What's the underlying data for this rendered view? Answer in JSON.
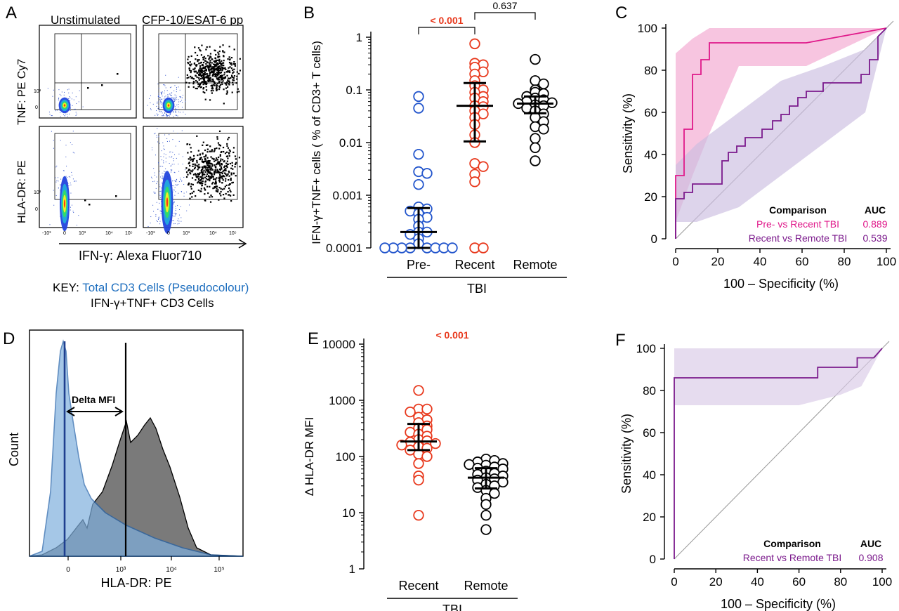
{
  "panels": {
    "A": {
      "letter": "A",
      "col_titles": [
        "Unstimulated",
        "CFP-10/ESAT-6 pp"
      ],
      "row_labels": [
        "TNF: PE Cy7",
        "HLA-DR: PE"
      ],
      "x_label": "IFN-γ: Alexa Fluor710",
      "x_tick_labels": [
        "-10³",
        "0",
        "10³",
        "10⁴",
        "10⁵"
      ],
      "y_tick_labels": [
        "10³",
        "0"
      ],
      "key": {
        "prefix": "KEY:",
        "line1": "Total CD3 Cells (Pseudocolour)",
        "line2": "IFN-γ+TNF+ CD3 Cells",
        "line1_color": "#1f6fbf"
      }
    },
    "B": {
      "letter": "B"
    },
    "C": {
      "letter": "C"
    },
    "D": {
      "letter": "D",
      "ylabel": "Count",
      "xlabel": "HLA-DR: PE",
      "annotation": "Delta MFI",
      "x_tick_labels": [
        "0",
        "10³",
        "10⁴",
        "10⁵"
      ],
      "colors": {
        "unstim_fill": "#7fb0de",
        "unstim_line": "#1f5fa8",
        "stim_fill": "#7a7a7a"
      }
    },
    "E": {
      "letter": "E"
    },
    "F": {
      "letter": "F"
    }
  },
  "chart_data": [
    {
      "panel": "B",
      "type": "scatter",
      "ylabel": "IFN-γ+TNF+ cells ( % of CD3+ T cells)",
      "y_scale": "log",
      "ylim": [
        0.0001,
        1
      ],
      "y_tick_labels": [
        "0.0001",
        "0.001",
        "0.01",
        "0.1",
        "1"
      ],
      "categories": [
        "Pre-",
        "Recent",
        "Remote"
      ],
      "group_label": "TBI",
      "colors": [
        "#2255cc",
        "#e8381c",
        "#000000"
      ],
      "series": [
        {
          "name": "Pre-",
          "values": [
            0.075,
            0.045,
            0.006,
            0.0028,
            0.0026,
            0.0016,
            0.0006,
            0.00055,
            0.0005,
            0.00045,
            0.00038,
            0.00035,
            0.00026,
            0.0002,
            0.0002,
            0.00018,
            0.00015,
            0.00012,
            0.0001,
            0.0001,
            0.0001,
            0.0001,
            0.0001,
            0.0001,
            0.0001,
            0.0001
          ],
          "median": 0.0002,
          "iqr": [
            0.0001,
            0.00057
          ]
        },
        {
          "name": "Recent",
          "values": [
            0.75,
            0.32,
            0.3,
            0.27,
            0.22,
            0.2,
            0.15,
            0.12,
            0.1,
            0.09,
            0.075,
            0.07,
            0.06,
            0.05,
            0.048,
            0.04,
            0.035,
            0.03,
            0.022,
            0.014,
            0.01,
            0.004,
            0.0035,
            0.0025,
            0.0018,
            0.0001,
            0.0001
          ],
          "median": 0.05,
          "iqr": [
            0.0105,
            0.135
          ]
        },
        {
          "name": "Remote",
          "values": [
            0.38,
            0.15,
            0.13,
            0.1,
            0.09,
            0.085,
            0.075,
            0.07,
            0.065,
            0.06,
            0.057,
            0.055,
            0.052,
            0.05,
            0.045,
            0.04,
            0.035,
            0.03,
            0.025,
            0.02,
            0.018,
            0.012,
            0.008,
            0.0045
          ],
          "median": 0.055,
          "iqr": [
            0.036,
            0.075
          ]
        }
      ],
      "comparisons": [
        {
          "groups": [
            "Pre-",
            "Recent"
          ],
          "label": "< 0.001",
          "color": "#e8381c"
        },
        {
          "groups": [
            "Recent",
            "Remote"
          ],
          "label": "0.637",
          "color": "#000000"
        }
      ]
    },
    {
      "panel": "C",
      "type": "line",
      "xlabel": "100 – Specificity (%)",
      "ylabel": "Sensitivity (%)",
      "xlim": [
        0,
        100
      ],
      "ylim": [
        0,
        100
      ],
      "ticks": [
        0,
        20,
        40,
        60,
        80,
        100
      ],
      "legend_header": [
        "Comparison",
        "AUC"
      ],
      "series": [
        {
          "name": "Pre- vs Recent TBI",
          "auc": "0.889",
          "color": "#e0198a",
          "band_color": "#f2a6cf",
          "x": [
            0,
            0,
            4,
            4,
            8,
            8,
            12,
            12,
            16,
            16,
            62,
            100
          ],
          "y": [
            0,
            30,
            30,
            52,
            52,
            78,
            78,
            85,
            85,
            93,
            93,
            100
          ],
          "band_lower": {
            "x": [
              0,
              8,
              16,
              30,
              62,
              100
            ],
            "y": [
              8,
              30,
              50,
              82,
              82,
              100
            ]
          },
          "band_upper": {
            "x": [
              0,
              8,
              16,
              30,
              62,
              100
            ],
            "y": [
              88,
              95,
              100,
              100,
              100,
              100
            ]
          }
        },
        {
          "name": "Recent vs Remote TBI",
          "auc": "0.539",
          "color": "#7b1a8c",
          "band_color": "#cbbde0",
          "x": [
            0,
            0,
            4,
            4,
            8,
            8,
            22,
            22,
            25,
            25,
            29,
            29,
            33,
            33,
            41,
            41,
            46,
            46,
            50,
            50,
            54,
            54,
            58,
            58,
            62,
            62,
            66,
            66,
            70,
            70,
            88,
            88,
            92,
            92,
            96,
            96,
            100
          ],
          "y": [
            0,
            19,
            19,
            22,
            22,
            26,
            26,
            37,
            37,
            41,
            41,
            44,
            44,
            48,
            48,
            52,
            52,
            56,
            56,
            59,
            59,
            63,
            63,
            67,
            67,
            70,
            70,
            70,
            70,
            74,
            74,
            78,
            78,
            85,
            85,
            96,
            100
          ],
          "band_lower": {
            "x": [
              0,
              10,
              30,
              50,
              70,
              90,
              100
            ],
            "y": [
              8,
              8,
              15,
              30,
              45,
              60,
              100
            ]
          },
          "band_upper": {
            "x": [
              0,
              10,
              30,
              50,
              70,
              90,
              100
            ],
            "y": [
              35,
              45,
              60,
              75,
              82,
              90,
              100
            ]
          }
        }
      ]
    },
    {
      "panel": "E",
      "type": "scatter",
      "ylabel": "Δ HLA-DR MFI",
      "y_scale": "log",
      "ylim": [
        1,
        10000
      ],
      "y_tick_labels": [
        "1",
        "10",
        "100",
        "1000",
        "10000"
      ],
      "categories": [
        "Recent",
        "Remote"
      ],
      "group_label": "TBI",
      "colors": [
        "#e8381c",
        "#000000"
      ],
      "series": [
        {
          "name": "Recent",
          "values": [
            1500,
            700,
            700,
            620,
            500,
            450,
            400,
            350,
            320,
            300,
            270,
            250,
            230,
            200,
            190,
            180,
            170,
            160,
            150,
            140,
            130,
            110,
            100,
            75,
            45,
            38,
            9
          ],
          "median": 185,
          "iqr": [
            130,
            380
          ]
        },
        {
          "name": "Remote",
          "values": [
            90,
            85,
            80,
            75,
            72,
            70,
            65,
            62,
            60,
            55,
            50,
            48,
            45,
            42,
            40,
            38,
            35,
            32,
            30,
            28,
            25,
            22,
            18,
            14,
            9,
            5
          ],
          "median": 42,
          "iqr": [
            27,
            62
          ]
        }
      ],
      "comparisons": [
        {
          "groups": [
            "Recent",
            "Remote"
          ],
          "label": "< 0.001",
          "color": "#e8381c"
        }
      ]
    },
    {
      "panel": "F",
      "type": "line",
      "xlabel": "100 – Specificity (%)",
      "ylabel": "Sensitivity (%)",
      "xlim": [
        0,
        100
      ],
      "ylim": [
        0,
        100
      ],
      "ticks": [
        0,
        20,
        40,
        60,
        80,
        100
      ],
      "legend_header": [
        "Comparison",
        "AUC"
      ],
      "series": [
        {
          "name": "Recent vs Remote TBI",
          "auc": "0.908",
          "color": "#7b1a8c",
          "band_color": "#d9c9e6",
          "x": [
            0,
            0,
            4,
            4,
            69,
            69,
            88,
            88,
            96,
            100
          ],
          "y": [
            0,
            86,
            86,
            86,
            86,
            91,
            91,
            95.5,
            95.5,
            100
          ],
          "band_lower": {
            "x": [
              0,
              4,
              60,
              80,
              90,
              100
            ],
            "y": [
              73,
              73,
              73,
              78,
              82,
              100
            ]
          },
          "band_upper": {
            "x": [
              0,
              4,
              60,
              80,
              90,
              100
            ],
            "y": [
              100,
              100,
              100,
              100,
              100,
              100
            ]
          }
        }
      ]
    }
  ]
}
